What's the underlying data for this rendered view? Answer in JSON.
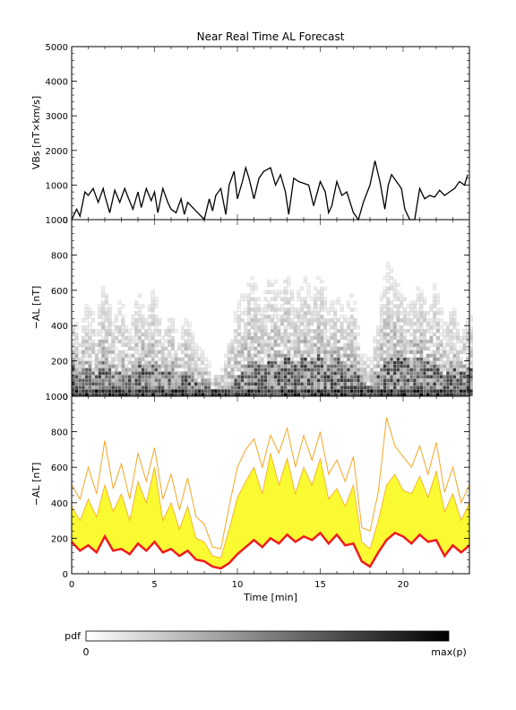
{
  "chart_data": {
    "title": "Near Real Time AL Forecast",
    "panels": [
      {
        "id": "vbs",
        "type": "line",
        "ylabel": "VBs [nT×km/s]",
        "ylim": [
          0,
          5000
        ],
        "yticks": [
          0,
          1000,
          2000,
          3000,
          4000,
          5000
        ],
        "series": [
          {
            "x": [
              0,
              0.3,
              0.5,
              0.8,
              1.0,
              1.3,
              1.6,
              1.9,
              2.0,
              2.3,
              2.6,
              2.9,
              3.2,
              3.4,
              3.7,
              4.0,
              4.2,
              4.5,
              4.8,
              5.0,
              5.2,
              5.5,
              5.8,
              6.0,
              6.3,
              6.6,
              6.8,
              7.0,
              7.2,
              7.5,
              7.8,
              8.0,
              8.3,
              8.5,
              8.7,
              9.0,
              9.3,
              9.5,
              9.8,
              10.0,
              10.3,
              10.5,
              10.7,
              11.0,
              11.3,
              11.6,
              12.0,
              12.3,
              12.6,
              12.9,
              13.1,
              13.4,
              13.7,
              14.0,
              14.3,
              14.6,
              15.0,
              15.3,
              15.5,
              15.7,
              16.0,
              16.3,
              16.6,
              17.0,
              17.3,
              17.6,
              18.0,
              18.3,
              18.6,
              18.9,
              19.1,
              19.3,
              19.6,
              19.9,
              20.1,
              20.4,
              20.7,
              21.0,
              21.3,
              21.6,
              21.9,
              22.2,
              22.5,
              22.8,
              23.1,
              23.4,
              23.7,
              23.9
            ],
            "y": [
              0,
              300,
              100,
              800,
              700,
              900,
              500,
              900,
              700,
              200,
              850,
              500,
              900,
              650,
              300,
              800,
              350,
              900,
              550,
              800,
              200,
              900,
              500,
              300,
              200,
              600,
              150,
              500,
              400,
              250,
              100,
              0,
              600,
              250,
              700,
              900,
              150,
              1000,
              1400,
              600,
              1100,
              1500,
              1200,
              600,
              1200,
              1400,
              1500,
              1000,
              1300,
              800,
              150,
              1200,
              1100,
              1050,
              1000,
              400,
              1100,
              800,
              200,
              400,
              1100,
              700,
              800,
              200,
              0,
              500,
              1000,
              1700,
              1100,
              300,
              1000,
              1300,
              1100,
              900,
              300,
              0,
              0,
              900,
              600,
              700,
              650,
              850,
              700,
              800,
              900,
              1100,
              1000,
              1300
            ]
          }
        ]
      },
      {
        "id": "pdf",
        "type": "heatmap",
        "ylabel": "−AL [nT]",
        "ylim": [
          0,
          1000
        ],
        "yticks": [
          0,
          200,
          400,
          600,
          800,
          1000
        ]
      },
      {
        "id": "forecast",
        "type": "area",
        "ylabel": "−AL [nT]",
        "ylim": [
          0,
          1000
        ],
        "yticks": [
          0,
          200,
          400,
          600,
          800,
          1000
        ],
        "colors": {
          "median": "#ee1c1c",
          "band": "#fafa32",
          "outline": "#f5a623"
        },
        "x": [
          0,
          0.5,
          1.0,
          1.5,
          2.0,
          2.5,
          3.0,
          3.5,
          4.0,
          4.5,
          5.0,
          5.5,
          6.0,
          6.5,
          7.0,
          7.5,
          8.0,
          8.5,
          9.0,
          9.5,
          10.0,
          10.5,
          11.0,
          11.5,
          12.0,
          12.5,
          13.0,
          13.5,
          14.0,
          14.5,
          15.0,
          15.5,
          16.0,
          16.5,
          17.0,
          17.5,
          18.0,
          18.5,
          19.0,
          19.5,
          20.0,
          20.5,
          21.0,
          21.5,
          22.0,
          22.5,
          23.0,
          23.5,
          24.0
        ],
        "median": [
          180,
          130,
          160,
          120,
          210,
          130,
          140,
          110,
          170,
          130,
          180,
          120,
          140,
          100,
          130,
          80,
          70,
          40,
          30,
          60,
          110,
          150,
          190,
          150,
          200,
          170,
          220,
          180,
          210,
          190,
          230,
          170,
          220,
          160,
          170,
          70,
          40,
          120,
          190,
          230,
          210,
          170,
          220,
          180,
          190,
          100,
          160,
          120,
          160
        ],
        "upper": [
          380,
          300,
          420,
          320,
          500,
          350,
          450,
          300,
          520,
          400,
          600,
          300,
          400,
          250,
          380,
          200,
          180,
          100,
          90,
          250,
          430,
          520,
          600,
          450,
          680,
          500,
          650,
          450,
          600,
          500,
          650,
          420,
          480,
          380,
          500,
          180,
          140,
          300,
          500,
          560,
          470,
          450,
          550,
          430,
          580,
          350,
          450,
          300,
          400
        ],
        "outer": [
          500,
          420,
          600,
          450,
          750,
          480,
          620,
          420,
          680,
          520,
          710,
          420,
          560,
          360,
          540,
          320,
          280,
          150,
          140,
          380,
          600,
          700,
          760,
          600,
          780,
          680,
          820,
          600,
          780,
          640,
          800,
          560,
          640,
          520,
          660,
          260,
          240,
          460,
          880,
          720,
          660,
          600,
          720,
          560,
          740,
          460,
          600,
          400,
          500
        ]
      }
    ],
    "x_axis": {
      "xlabel": "Time [min]",
      "xlim": [
        0,
        24
      ],
      "ticks": [
        0,
        5,
        10,
        15,
        20
      ]
    },
    "colorbar": {
      "label": "pdf",
      "min_label": "0",
      "max_label": "max(p)",
      "from": "#ffffff",
      "to": "#000000"
    }
  }
}
